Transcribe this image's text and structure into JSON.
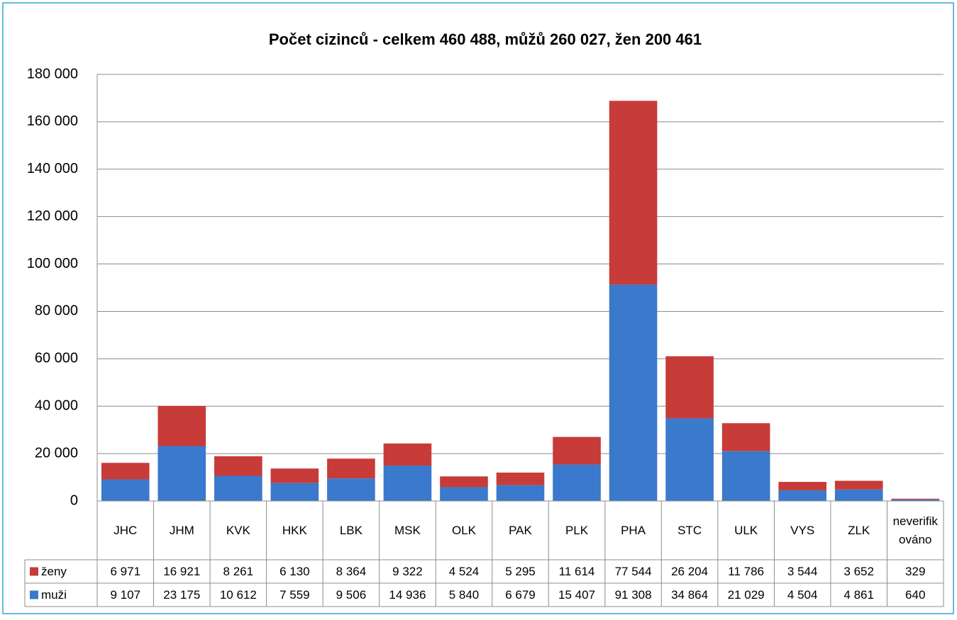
{
  "chart_data": {
    "type": "bar",
    "stacked": true,
    "title": "Počet cizinců - celkem 460 488, můžů 260 027, žen 200 461",
    "categories": [
      "JHC",
      "JHM",
      "KVK",
      "HKK",
      "LBK",
      "MSK",
      "OLK",
      "PAK",
      "PLK",
      "PHA",
      "STC",
      "ULK",
      "VYS",
      "ZLK",
      "neverifikováno"
    ],
    "series": [
      {
        "name": "ženy",
        "color": "#c73b38",
        "values": [
          6971,
          16921,
          8261,
          6130,
          8364,
          9322,
          4524,
          5295,
          11614,
          77544,
          26204,
          11786,
          3544,
          3652,
          329
        ],
        "value_labels": [
          "6 971",
          "16 921",
          "8 261",
          "6 130",
          "8 364",
          "9 322",
          "4 524",
          "5 295",
          "11 614",
          "77 544",
          "26 204",
          "11 786",
          "3 544",
          "3 652",
          "329"
        ]
      },
      {
        "name": "muži",
        "color": "#3a79cc",
        "values": [
          9107,
          23175,
          10612,
          7559,
          9506,
          14936,
          5840,
          6679,
          15407,
          91308,
          34864,
          21029,
          4504,
          4861,
          640
        ],
        "value_labels": [
          "9 107",
          "23 175",
          "10 612",
          "7 559",
          "9 506",
          "14 936",
          "5 840",
          "6 679",
          "15 407",
          "91 308",
          "34 864",
          "21 029",
          "4 504",
          "4 861",
          "640"
        ]
      }
    ],
    "ylim": [
      0,
      180000
    ],
    "yticks": [
      0,
      {
        "value": 20000,
        "label": "20 000"
      },
      {
        "value": 40000,
        "label": "40 000"
      },
      {
        "value": 60000,
        "label": "60 000"
      },
      {
        "value": 80000,
        "label": "80 000"
      },
      {
        "value": 100000,
        "label": "100 000"
      },
      {
        "value": 120000,
        "label": "120 000"
      },
      {
        "value": 140000,
        "label": "140 000"
      },
      {
        "value": 160000,
        "label": "160 000"
      },
      {
        "value": 180000,
        "label": "180 000"
      }
    ],
    "grid": true
  }
}
